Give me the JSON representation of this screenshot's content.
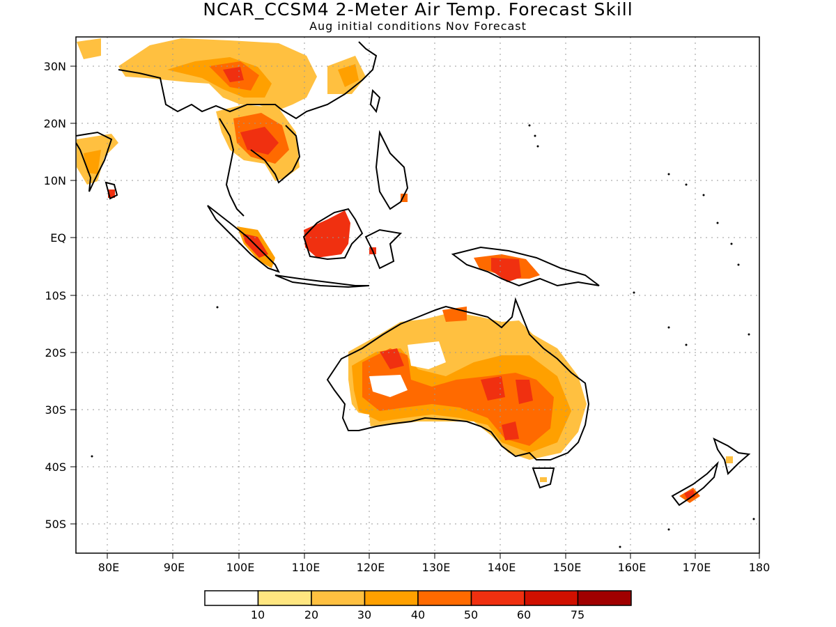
{
  "title": "NCAR_CCSM4 2-Meter Air Temp. Forecast Skill",
  "subtitle": "Aug initial conditions  Nov Forecast",
  "lat_labels": [
    "30N",
    "20N",
    "10N",
    "EQ",
    "10S",
    "20S",
    "30S",
    "40S",
    "50S"
  ],
  "lon_labels": [
    "80E",
    "90E",
    "100E",
    "110E",
    "120E",
    "130E",
    "140E",
    "150E",
    "160E",
    "170E",
    "180"
  ],
  "colorbar": {
    "colors": [
      "#ffffff",
      "#ffe680",
      "#ffc040",
      "#ffa000",
      "#ff6a00",
      "#f03010",
      "#d01000",
      "#a00000"
    ],
    "labels": [
      "10",
      "20",
      "30",
      "40",
      "50",
      "60",
      "75"
    ]
  }
}
